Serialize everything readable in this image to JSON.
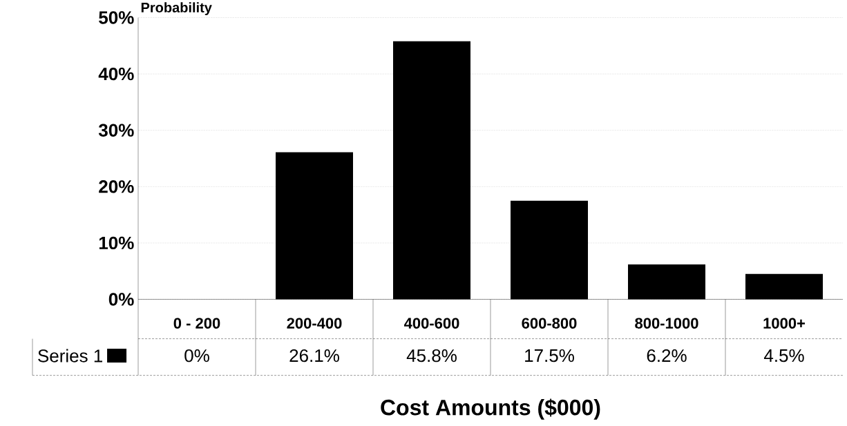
{
  "chart_data": {
    "type": "bar",
    "ylabel": "Probability",
    "xlabel": "Cost Amounts ($000)",
    "categories": [
      "0 - 200",
      "200-400",
      "400-600",
      "600-800",
      "800-1000",
      "1000+"
    ],
    "series": [
      {
        "name": "Series 1",
        "color": "#000000",
        "values": [
          0,
          26.1,
          45.8,
          17.5,
          6.2,
          4.5
        ],
        "value_labels": [
          "0%",
          "26.1%",
          "45.8%",
          "17.5%",
          "6.2%",
          "4.5%"
        ]
      }
    ],
    "ylim": [
      0,
      50
    ],
    "yticks": [
      {
        "value": 0,
        "label": "0%"
      },
      {
        "value": 10,
        "label": "10%"
      },
      {
        "value": 20,
        "label": "20%"
      },
      {
        "value": 30,
        "label": "30%"
      },
      {
        "value": 40,
        "label": "40%"
      },
      {
        "value": 50,
        "label": "50%"
      }
    ],
    "grid": "y",
    "legend": "bottom"
  }
}
